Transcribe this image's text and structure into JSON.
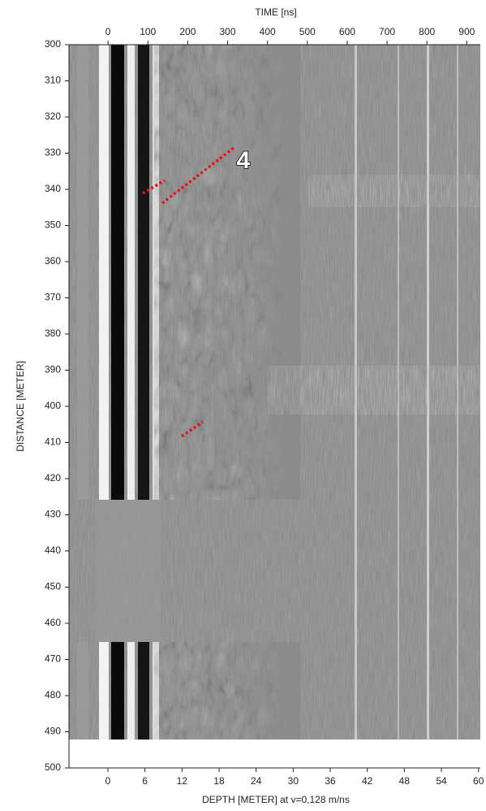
{
  "chart_data": {
    "type": "radargram",
    "x_label": "TIME [ns]",
    "x2_label": "DEPTH [METER] at v=0,128 m/ns",
    "y_label": "DISTANCE [METER]",
    "annotation": "4",
    "xlim": [
      -98,
      934
    ],
    "xticks": [
      0,
      100,
      200,
      300,
      400,
      500,
      600,
      700,
      800,
      900
    ],
    "x2lim": [
      -6.3,
      60.3
    ],
    "x2ticks": [
      0,
      6,
      12,
      18,
      24,
      30,
      36,
      42,
      48,
      54,
      60
    ],
    "ylim": [
      300,
      500
    ],
    "yticks": [
      300,
      310,
      320,
      330,
      340,
      350,
      360,
      370,
      380,
      390,
      400,
      410,
      420,
      430,
      440,
      450,
      460,
      470,
      480,
      490,
      500
    ]
  }
}
